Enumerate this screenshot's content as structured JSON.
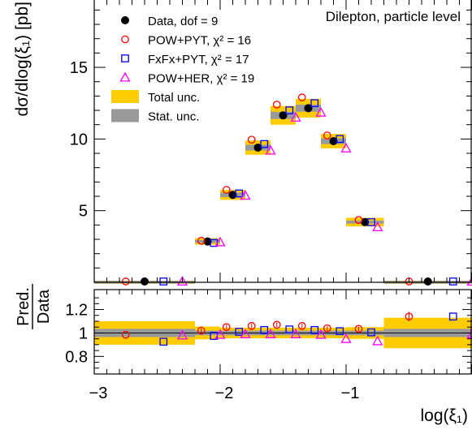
{
  "chart_data": [
    {
      "type": "scatter",
      "annotation": "Dilepton, particle level",
      "ylabel": "dσ/dlog(ξ₁) [pb]",
      "ylim": [
        0,
        19.7
      ],
      "yticks": [
        5,
        10,
        15
      ],
      "bins": [
        {
          "xlo": -3.0,
          "xhi": -2.2,
          "data": 0.0,
          "stat": 0.0,
          "total": 0.1
        },
        {
          "xlo": -2.2,
          "xhi": -2.0,
          "data": 2.85,
          "stat": 0.1,
          "total": 0.22
        },
        {
          "xlo": -2.0,
          "xhi": -1.8,
          "data": 6.1,
          "stat": 0.15,
          "total": 0.35
        },
        {
          "xlo": -1.8,
          "xhi": -1.6,
          "data": 9.4,
          "stat": 0.2,
          "total": 0.5
        },
        {
          "xlo": -1.6,
          "xhi": -1.4,
          "data": 11.65,
          "stat": 0.25,
          "total": 0.65
        },
        {
          "xlo": -1.4,
          "xhi": -1.2,
          "data": 12.15,
          "stat": 0.25,
          "total": 0.65
        },
        {
          "xlo": -1.2,
          "xhi": -1.0,
          "data": 9.85,
          "stat": 0.2,
          "total": 0.5
        },
        {
          "xlo": -1.0,
          "xhi": -0.7,
          "data": 4.2,
          "stat": 0.1,
          "total": 0.3
        },
        {
          "xlo": -0.7,
          "xhi": 0.0,
          "data": 0.0,
          "stat": 0.0,
          "total": 0.1
        }
      ],
      "series": [
        {
          "name": "Data, dof = 9",
          "marker": "filled-circle",
          "color": "#000000",
          "x": [
            -2.6,
            -2.1,
            -1.9,
            -1.7,
            -1.5,
            -1.3,
            -1.1,
            -0.85,
            -0.35
          ],
          "values": [
            0.0,
            2.85,
            6.1,
            9.4,
            11.65,
            12.15,
            9.85,
            4.2,
            0.0
          ]
        },
        {
          "name": "POW+PYT, χ² = 16",
          "marker": "open-circle",
          "color": "#ff0000",
          "x": [
            -2.75,
            -2.15,
            -1.95,
            -1.75,
            -1.55,
            -1.35,
            -1.15,
            -0.9,
            -0.5
          ],
          "values": [
            0.0,
            2.9,
            6.45,
            9.95,
            12.4,
            12.9,
            10.25,
            4.35,
            0.0
          ]
        },
        {
          "name": "FxFx+PYT, χ² = 17",
          "marker": "open-square",
          "color": "#0000ff",
          "x": [
            -2.45,
            -2.05,
            -1.85,
            -1.65,
            -1.45,
            -1.25,
            -1.05,
            -0.8,
            -0.15
          ],
          "values": [
            0.0,
            2.75,
            6.2,
            9.65,
            12.0,
            12.5,
            10.0,
            4.2,
            0.0
          ]
        },
        {
          "name": "POW+HER, χ² = 19",
          "marker": "open-triangle",
          "color": "#ff00ff",
          "x": [
            -2.3,
            -2.0,
            -1.8,
            -1.6,
            -1.4,
            -1.2,
            -1.0,
            -0.75,
            0.0
          ],
          "values": [
            0.0,
            2.8,
            6.05,
            9.2,
            11.5,
            11.85,
            9.35,
            3.85,
            0.0
          ]
        }
      ],
      "legend": {
        "placement": "top-left",
        "entries": [
          {
            "label": "Data, dof = 9"
          },
          {
            "label": "POW+PYT, χ² = 16"
          },
          {
            "label": "FxFx+PYT, χ² = 17"
          },
          {
            "label": "POW+HER, χ² = 19"
          },
          {
            "label": "Total unc."
          },
          {
            "label": "Stat. unc."
          }
        ]
      },
      "colors": {
        "total": "#ffcc00",
        "stat": "#999999"
      }
    },
    {
      "type": "scatter",
      "ylabel_num": "Pred.",
      "ylabel_den": "Data",
      "xlabel": "log(ξ₁)",
      "xlim": [
        -3,
        0
      ],
      "xticks": [
        "−3",
        "−2",
        "−1"
      ],
      "ylim": [
        0.65,
        1.37
      ],
      "yticks": [
        "0.8",
        "1",
        "1.2"
      ],
      "bands": [
        {
          "xlo": -3.0,
          "xhi": -2.2,
          "total": 0.1,
          "stat": 0.035
        },
        {
          "xlo": -2.2,
          "xhi": -2.0,
          "total": 0.055,
          "stat": 0.02
        },
        {
          "xlo": -2.0,
          "xhi": -1.8,
          "total": 0.045,
          "stat": 0.02
        },
        {
          "xlo": -1.8,
          "xhi": -1.6,
          "total": 0.045,
          "stat": 0.02
        },
        {
          "xlo": -1.6,
          "xhi": -1.4,
          "total": 0.045,
          "stat": 0.02
        },
        {
          "xlo": -1.4,
          "xhi": -1.2,
          "total": 0.045,
          "stat": 0.02
        },
        {
          "xlo": -1.2,
          "xhi": -1.0,
          "total": 0.045,
          "stat": 0.02
        },
        {
          "xlo": -1.0,
          "xhi": -0.7,
          "total": 0.05,
          "stat": 0.02
        },
        {
          "xlo": -0.7,
          "xhi": 0.0,
          "total": 0.13,
          "stat": 0.035
        }
      ],
      "series": [
        {
          "name": "POW+PYT",
          "marker": "open-circle",
          "color": "#ff0000",
          "x": [
            -2.75,
            -2.15,
            -1.95,
            -1.75,
            -1.55,
            -1.35,
            -1.15,
            -0.9,
            -0.5
          ],
          "values": [
            0.985,
            1.02,
            1.05,
            1.06,
            1.07,
            1.06,
            1.04,
            1.035,
            1.14
          ],
          "err": [
            0.0,
            0.02,
            0.02,
            0.02,
            0.02,
            0.02,
            0.02,
            0.02,
            0.04
          ]
        },
        {
          "name": "FxFx+PYT",
          "marker": "open-square",
          "color": "#0000ff",
          "x": [
            -2.45,
            -2.05,
            -1.85,
            -1.65,
            -1.45,
            -1.25,
            -1.05,
            -0.8,
            -0.15
          ],
          "values": [
            0.925,
            0.975,
            1.01,
            1.025,
            1.03,
            1.025,
            1.015,
            1.005,
            1.14
          ],
          "err": [
            0.0,
            0.0,
            0.0,
            0.0,
            0.0,
            0.0,
            0.0,
            0.0,
            0.0
          ]
        },
        {
          "name": "POW+HER",
          "marker": "open-triangle",
          "color": "#ff00ff",
          "x": [
            -2.3,
            -2.0,
            -1.8,
            -1.6,
            -1.4,
            -1.2,
            -1.0,
            -0.75,
            0.0
          ],
          "values": [
            0.98,
            0.985,
            0.99,
            0.99,
            0.99,
            0.985,
            0.95,
            0.93,
            0.99
          ],
          "err": [
            0.0,
            0.0,
            0.0,
            0.0,
            0.0,
            0.0,
            0.0,
            0.0,
            0.0
          ]
        }
      ]
    }
  ]
}
